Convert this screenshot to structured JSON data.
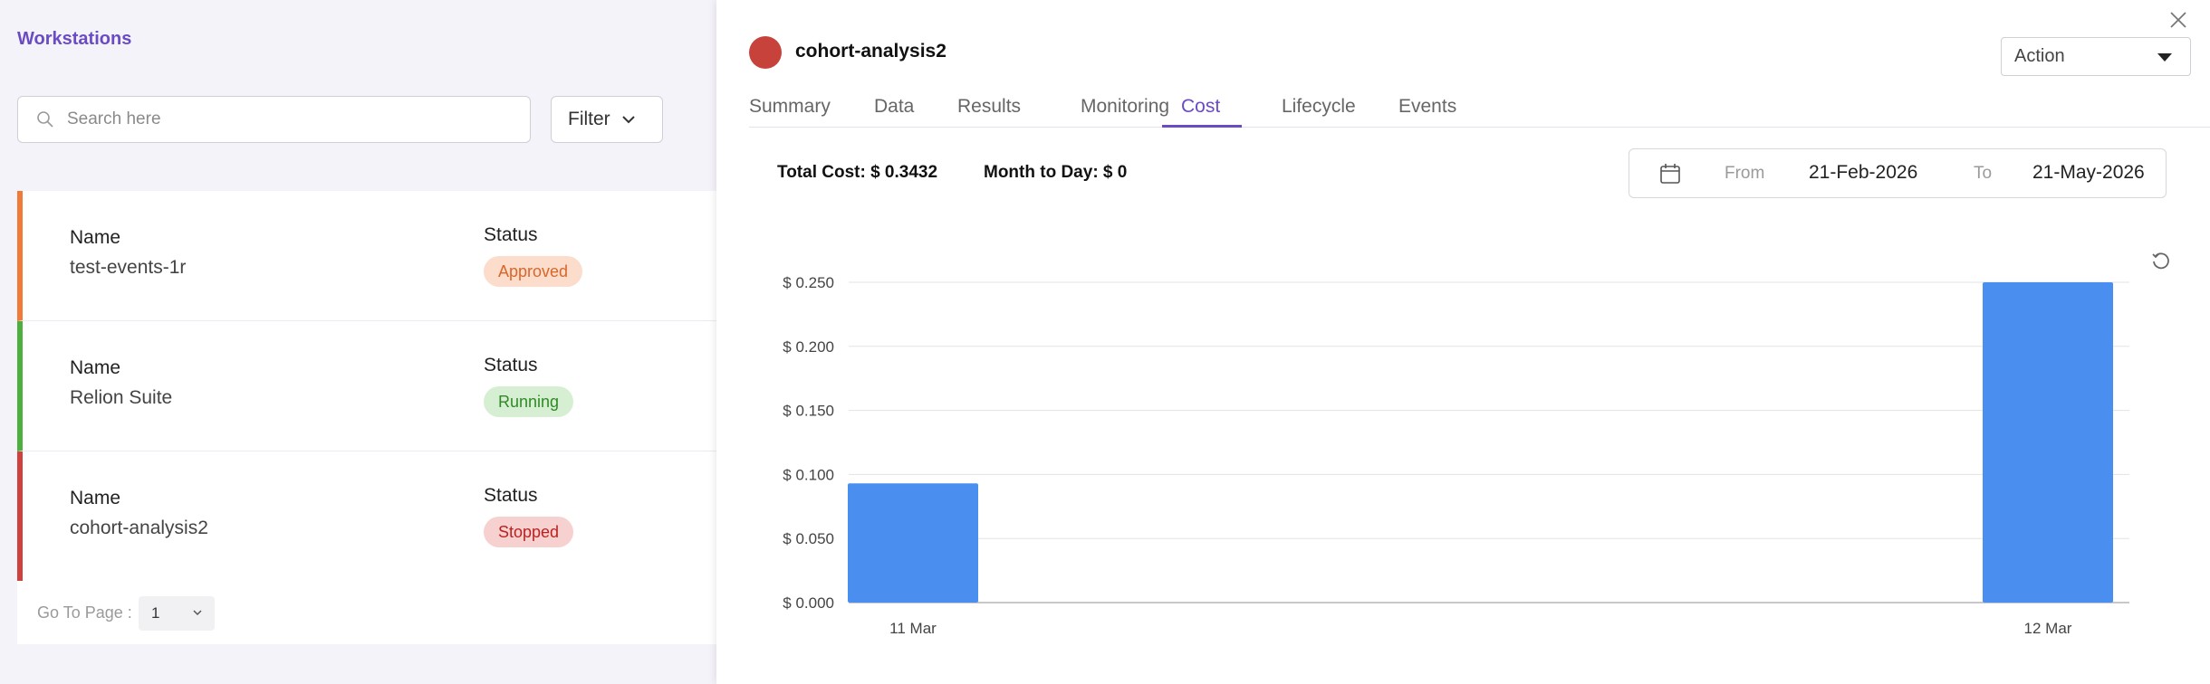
{
  "page": {
    "title": "Workstations",
    "search": {
      "placeholder": "Search here",
      "value": ""
    },
    "filter_label": "Filter"
  },
  "workstations": [
    {
      "name_label": "Name",
      "name": "test-events-1r",
      "status_label": "Status",
      "status": "Approved",
      "accent": "#f07a36",
      "badge_bg": "#fcdccb",
      "badge_fg": "#d9662a"
    },
    {
      "name_label": "Name",
      "name": "Relion Suite",
      "status_label": "Status",
      "status": "Running",
      "accent": "#4caf3e",
      "badge_bg": "#d6efd2",
      "badge_fg": "#2f8a26"
    },
    {
      "name_label": "Name",
      "name": "cohort-analysis2",
      "status_label": "Status",
      "status": "Stopped",
      "accent": "#d0413d",
      "badge_bg": "#f7d0d0",
      "badge_fg": "#b8231f"
    }
  ],
  "pager": {
    "label": "Go To Page :",
    "value": "1"
  },
  "drawer": {
    "title": "cohort-analysis2",
    "status_color": "#c8423c",
    "action_label": "Action",
    "tabs": [
      "Summary",
      "Data",
      "Results",
      "Monitoring",
      "Cost",
      "Lifecycle",
      "Events"
    ],
    "active_tab": "Cost",
    "total_cost": "Total Cost: $ 0.3432",
    "month_to_day": "Month to Day: $ 0",
    "date_range": {
      "from_label": "From",
      "from": "21-Feb-2026",
      "to_label": "To",
      "to": "21-May-2026"
    }
  },
  "chart_data": {
    "type": "bar",
    "categories": [
      "11 Mar",
      "12 Mar"
    ],
    "values": [
      0.093,
      0.25
    ],
    "ylim": [
      0,
      0.25
    ],
    "y_ticks": [
      "$ 0.000",
      "$ 0.050",
      "$ 0.100",
      "$ 0.150",
      "$ 0.200",
      "$ 0.250"
    ],
    "y_tick_values": [
      0,
      0.05,
      0.1,
      0.15,
      0.2,
      0.25
    ],
    "bar_color": "#4a8ff0",
    "grid": true
  }
}
